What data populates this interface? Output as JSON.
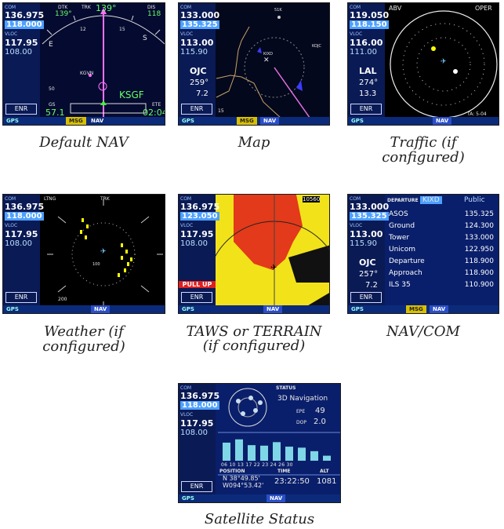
{
  "captions": {
    "default_nav": "Default NAV",
    "map": "Map",
    "traffic": "Traffic (if configured)",
    "weather": "Weather (if configured)",
    "taws_line1": "TAWS or TERRAIN",
    "taws_line2": "(if configured)",
    "navcom": "NAV/COM",
    "satellite": "Satellite Status"
  },
  "left_panel": {
    "com_tag": "COM",
    "vloc_tag": "VLOC",
    "enr": "ENR"
  },
  "status_bar": {
    "gps": "GPS",
    "msg": "MSG",
    "nav": "NAV"
  },
  "default_nav": {
    "com_active": "136.975",
    "com_standby": "118.000",
    "vloc_active": "117.95",
    "vloc_standby": "108.00",
    "dtk_label": "DTK",
    "dtk_value": "139°",
    "trk_label": "TRK",
    "trk_value": "139°",
    "dis_label": "DIS",
    "dis_value": "118",
    "waypoint": "KSGF",
    "wpt_small": "KGVN",
    "gs_label": "GS",
    "gs_value": "57.1",
    "ete_label": "ETE",
    "ete_value": "02:04",
    "compass_e": "E",
    "compass_s": "S",
    "tick_12": "12",
    "tick_15": "15",
    "scale": "50"
  },
  "map": {
    "com_active": "133.000",
    "com_standby": "135.325",
    "vloc_active": "113.00",
    "vloc_standby": "115.90",
    "vor_id": "OJC",
    "rad_value": "259°",
    "dis_value": "7.2",
    "apt": "KIXD",
    "apt2": "KOJC",
    "wpt_top": "51K",
    "range": "15"
  },
  "traffic": {
    "com_active": "119.050",
    "com_standby": "118.150",
    "vloc_active": "116.00",
    "vloc_standby": "111.00",
    "vor_id": "LAL",
    "rad_value": "274°",
    "dis_value": "13.3",
    "mode": "ABV",
    "status": "OPER",
    "status_bottom": "TA: 5-04"
  },
  "weather": {
    "com_active": "136.975",
    "com_standby": "118.000",
    "vloc_active": "117.95",
    "vloc_standby": "108.00",
    "label": "LTNG",
    "trk_label": "TRK",
    "range_small": "100",
    "range_big": "200"
  },
  "taws": {
    "com_active": "136.975",
    "com_standby": "123.050",
    "vloc_active": "117.95",
    "vloc_standby": "108.00",
    "pull_up": "PULL UP",
    "altitude": "10560"
  },
  "navcom": {
    "com_active": "133.000",
    "com_standby": "135.325",
    "vloc_active": "113.00",
    "vloc_standby": "115.90",
    "vor_id": "OJC",
    "rad_value": "257°",
    "dis_value": "7.2",
    "header": "DEPARTURE",
    "airport": "KIXD",
    "usage": "Public",
    "rows": [
      {
        "name": "ASOS",
        "freq": "135.325"
      },
      {
        "name": "Ground",
        "freq": "124.300"
      },
      {
        "name": "Tower",
        "freq": "133.000"
      },
      {
        "name": "Unicom",
        "freq": "122.950"
      },
      {
        "name": "Departure",
        "freq": "118.900"
      },
      {
        "name": "Approach",
        "freq": "118.900"
      },
      {
        "name": "ILS 35",
        "freq": "110.900"
      }
    ]
  },
  "satellite": {
    "com_active": "136.975",
    "com_standby": "118.000",
    "vloc_active": "117.95",
    "vloc_standby": "108.00",
    "status_label": "STATUS",
    "mode": "3D Navigation",
    "epe_label": "EPE",
    "epe_value": "49",
    "dop_label": "DOP",
    "dop_value": "2.0",
    "sat_ids": "06 10 13 17 22 23 24 26 30",
    "position_label": "POSITION",
    "time_label": "TIME",
    "alt_label": "ALT",
    "lat": "N 38°49.85'",
    "lon": "W094°53.42'",
    "time_value": "23:22:50",
    "alt_value": "1081",
    "signal_levels": [
      0.72,
      0.85,
      0.62,
      0.6,
      0.74,
      0.56,
      0.52,
      0.38,
      0.2
    ]
  }
}
